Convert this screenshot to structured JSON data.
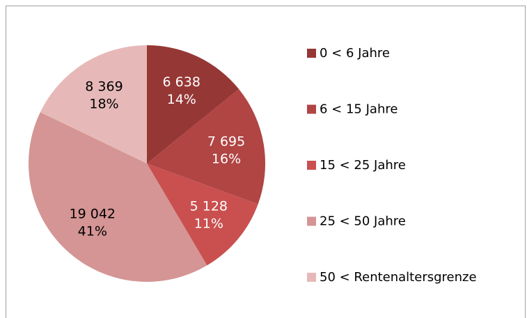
{
  "chart_data": {
    "type": "pie",
    "categories": [
      "0 < 6 Jahre",
      "6 < 15 Jahre",
      "15 < 25 Jahre",
      "25 < 50 Jahre",
      "50 < Rentenaltersgrenze"
    ],
    "values": [
      6638,
      7695,
      5128,
      19042,
      8369
    ],
    "value_labels": [
      "6 638",
      "7 695",
      "5 128",
      "19 042",
      "8 369"
    ],
    "percentages": [
      14,
      16,
      11,
      41,
      18
    ],
    "percentage_labels": [
      "14%",
      "16%",
      "11%",
      "41%",
      "18%"
    ],
    "colors": [
      "#953735",
      "#b04544",
      "#c9504f",
      "#d49594",
      "#e6b9b8"
    ],
    "legend": "right"
  }
}
